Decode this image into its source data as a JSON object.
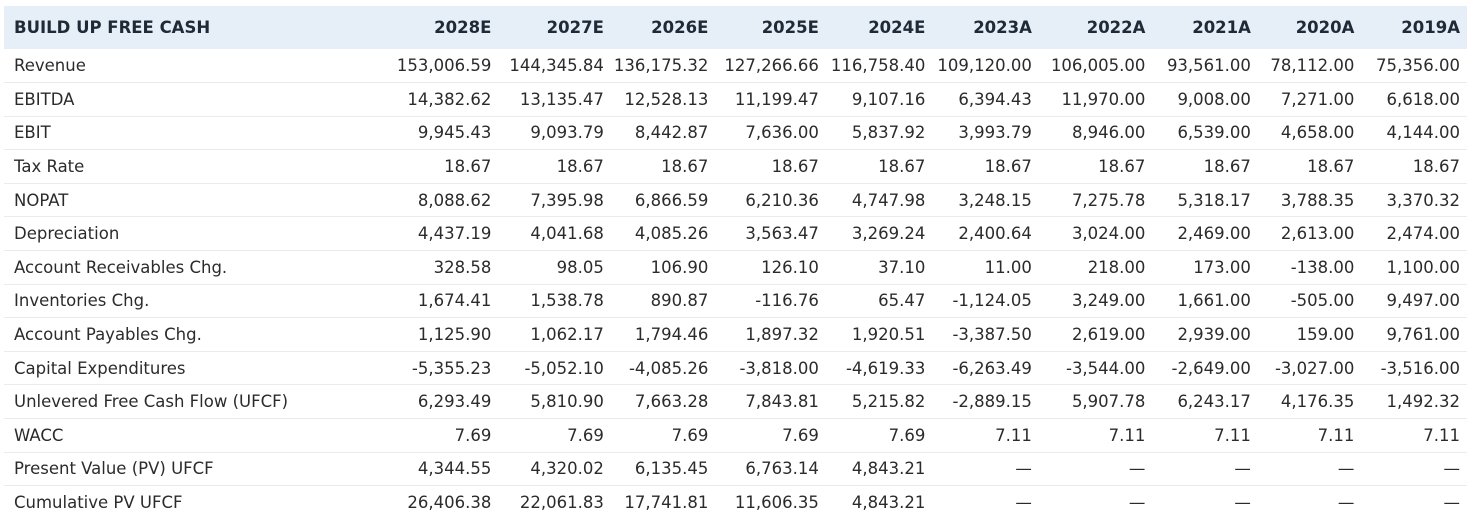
{
  "table": {
    "title": "BUILD UP FREE CASH",
    "columns": [
      "2028E",
      "2027E",
      "2026E",
      "2025E",
      "2024E",
      "2023A",
      "2022A",
      "2021A",
      "2020A",
      "2019A"
    ],
    "rows": [
      {
        "label": "Revenue",
        "values": [
          "153,006.59",
          "144,345.84",
          "136,175.32",
          "127,266.66",
          "116,758.40",
          "109,120.00",
          "106,005.00",
          "93,561.00",
          "78,112.00",
          "75,356.00"
        ]
      },
      {
        "label": "EBITDA",
        "values": [
          "14,382.62",
          "13,135.47",
          "12,528.13",
          "11,199.47",
          "9,107.16",
          "6,394.43",
          "11,970.00",
          "9,008.00",
          "7,271.00",
          "6,618.00"
        ]
      },
      {
        "label": "EBIT",
        "values": [
          "9,945.43",
          "9,093.79",
          "8,442.87",
          "7,636.00",
          "5,837.92",
          "3,993.79",
          "8,946.00",
          "6,539.00",
          "4,658.00",
          "4,144.00"
        ]
      },
      {
        "label": "Tax Rate",
        "values": [
          "18.67",
          "18.67",
          "18.67",
          "18.67",
          "18.67",
          "18.67",
          "18.67",
          "18.67",
          "18.67",
          "18.67"
        ]
      },
      {
        "label": "NOPAT",
        "values": [
          "8,088.62",
          "7,395.98",
          "6,866.59",
          "6,210.36",
          "4,747.98",
          "3,248.15",
          "7,275.78",
          "5,318.17",
          "3,788.35",
          "3,370.32"
        ]
      },
      {
        "label": "Depreciation",
        "values": [
          "4,437.19",
          "4,041.68",
          "4,085.26",
          "3,563.47",
          "3,269.24",
          "2,400.64",
          "3,024.00",
          "2,469.00",
          "2,613.00",
          "2,474.00"
        ]
      },
      {
        "label": "Account Receivables Chg.",
        "values": [
          "328.58",
          "98.05",
          "106.90",
          "126.10",
          "37.10",
          "11.00",
          "218.00",
          "173.00",
          "-138.00",
          "1,100.00"
        ]
      },
      {
        "label": "Inventories Chg.",
        "values": [
          "1,674.41",
          "1,538.78",
          "890.87",
          "-116.76",
          "65.47",
          "-1,124.05",
          "3,249.00",
          "1,661.00",
          "-505.00",
          "9,497.00"
        ]
      },
      {
        "label": "Account Payables Chg.",
        "values": [
          "1,125.90",
          "1,062.17",
          "1,794.46",
          "1,897.32",
          "1,920.51",
          "-3,387.50",
          "2,619.00",
          "2,939.00",
          "159.00",
          "9,761.00"
        ]
      },
      {
        "label": "Capital Expenditures",
        "values": [
          "-5,355.23",
          "-5,052.10",
          "-4,085.26",
          "-3,818.00",
          "-4,619.33",
          "-6,263.49",
          "-3,544.00",
          "-2,649.00",
          "-3,027.00",
          "-3,516.00"
        ]
      },
      {
        "label": "Unlevered Free Cash Flow (UFCF)",
        "values": [
          "6,293.49",
          "5,810.90",
          "7,663.28",
          "7,843.81",
          "5,215.82",
          "-2,889.15",
          "5,907.78",
          "6,243.17",
          "4,176.35",
          "1,492.32"
        ]
      },
      {
        "label": "WACC",
        "values": [
          "7.69",
          "7.69",
          "7.69",
          "7.69",
          "7.69",
          "7.11",
          "7.11",
          "7.11",
          "7.11",
          "7.11"
        ]
      },
      {
        "label": "Present Value (PV) UFCF",
        "values": [
          "4,344.55",
          "4,320.02",
          "6,135.45",
          "6,763.14",
          "4,843.21",
          "—",
          "—",
          "—",
          "—",
          "—"
        ]
      },
      {
        "label": "Cumulative PV UFCF",
        "values": [
          "26,406.38",
          "22,061.83",
          "17,741.81",
          "11,606.35",
          "4,843.21",
          "—",
          "—",
          "—",
          "—",
          "—"
        ]
      }
    ]
  }
}
